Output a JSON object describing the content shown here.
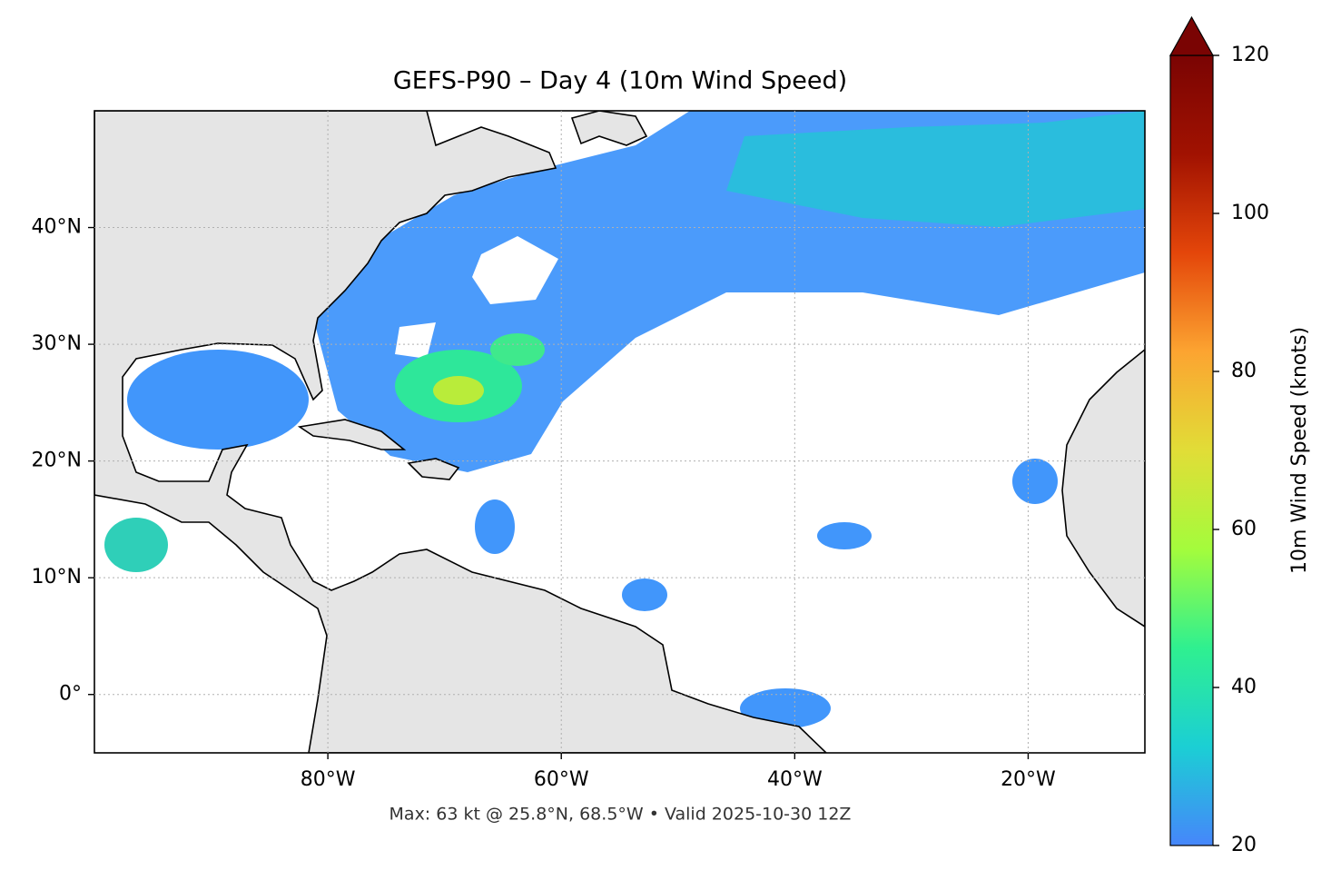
{
  "chart_data": {
    "type": "map",
    "title": "GEFS-P90 – Day 4 (10m Wind Speed)",
    "annotation": "Max: 63 kt @ 25.8°N, 68.5°W • Valid 2025-10-30 12Z",
    "xlim": [
      -100,
      -10
    ],
    "ylim": [
      -5,
      50
    ],
    "xticks": [
      {
        "value": -80,
        "label": "80°W"
      },
      {
        "value": -60,
        "label": "60°W"
      },
      {
        "value": -40,
        "label": "40°W"
      },
      {
        "value": -20,
        "label": "20°W"
      }
    ],
    "yticks": [
      {
        "value": 0,
        "label": "0°"
      },
      {
        "value": 10,
        "label": "10°N"
      },
      {
        "value": 20,
        "label": "20°N"
      },
      {
        "value": 30,
        "label": "30°N"
      },
      {
        "value": 40,
        "label": "40°N"
      }
    ],
    "grid": true,
    "colorbar": {
      "label": "10m Wind Speed (knots)",
      "lim": [
        20,
        120
      ],
      "ticks": [
        20,
        40,
        60,
        80,
        100,
        120
      ],
      "colors": [
        "#4686fb",
        "#1bcfd4",
        "#2ff090",
        "#a4fc3c",
        "#e1dd37",
        "#fca431",
        "#e4460a",
        "#a11201",
        "#7a0403"
      ],
      "extend": "max"
    }
  }
}
